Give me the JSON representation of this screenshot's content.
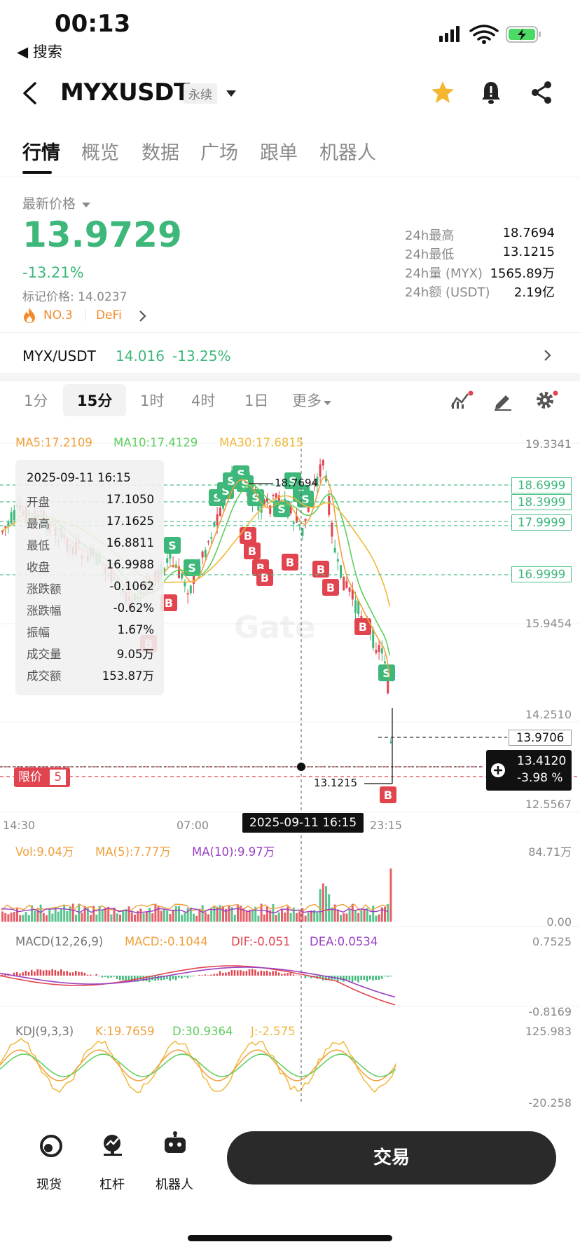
{
  "status_bar": {
    "time": "00:13",
    "back_label": "◀ 搜索"
  },
  "header": {
    "pair": "MYXUSDT",
    "contract_type": "永续"
  },
  "tabs": [
    "行情",
    "概览",
    "数据",
    "广场",
    "跟单",
    "机器人"
  ],
  "price_block": {
    "label": "最新价格",
    "last_price": "13.9729",
    "change_pct": "-13.21%",
    "mark_price_label": "标记价格: 14.0237",
    "rank": "NO.3",
    "sector": "DeFi"
  },
  "stats": [
    {
      "k": "24h最高",
      "v": "18.7694"
    },
    {
      "k": "24h最低",
      "v": "13.1215"
    },
    {
      "k": "24h量 (MYX)",
      "v": "1565.89万"
    },
    {
      "k": "24h额 (USDT)",
      "v": "2.19亿"
    }
  ],
  "spot_row": {
    "pair": "MYX/USDT",
    "price": "14.016",
    "change": "-13.25%"
  },
  "intervals": [
    "1分",
    "15分",
    "1时",
    "4时",
    "1日",
    "更多"
  ],
  "chart": {
    "ma_legend": {
      "ma5": "MA5:17.2109",
      "ma10": "MA10:17.4129",
      "ma30": "MA30:17.6815"
    },
    "y_axis": [
      "19.3341",
      "15.9454",
      "14.2510",
      "12.5567"
    ],
    "price_tags": [
      "18.6999",
      "18.3999",
      "17.9999",
      "16.9999"
    ],
    "current_price_tag": "13.9706",
    "crosshair_tag": {
      "price": "13.4120",
      "pct": "-3.98 %"
    },
    "high_marker": "18.7694",
    "low_marker": "13.1215",
    "limit_label": "限价",
    "limit_count": "5",
    "x_axis": [
      "14:30",
      "07:00",
      "23:15"
    ],
    "crosshair_time": "2025-09-11 16:15",
    "watermark": "Gate",
    "vol_legend": {
      "vol": "Vol:9.04万",
      "ma5": "MA(5):7.77万",
      "ma10": "MA(10):9.97万"
    },
    "vol_axis": [
      "84.71万",
      "0.00"
    ],
    "macd_legend": {
      "name": "MACD(12,26,9)",
      "macd": "MACD:-0.1044",
      "dif": "DIF:-0.051",
      "dea": "DEA:0.0534"
    },
    "macd_axis": [
      "0.7525",
      "-0.8169"
    ],
    "kdj_legend": {
      "name": "KDJ(9,3,3)",
      "k": "K:19.7659",
      "d": "D:30.9364",
      "j": "J:-2.575"
    },
    "kdj_axis": [
      "125.983",
      "-20.258"
    ],
    "popup": [
      {
        "k": "",
        "v": "2025-09-11 16:15"
      },
      {
        "k": "开盘",
        "v": "17.1050"
      },
      {
        "k": "最高",
        "v": "17.1625"
      },
      {
        "k": "最低",
        "v": "16.8811"
      },
      {
        "k": "收盘",
        "v": "16.9988"
      },
      {
        "k": "涨跌额",
        "v": "-0.1062"
      },
      {
        "k": "涨跌幅",
        "v": "-0.62%"
      },
      {
        "k": "振幅",
        "v": "1.67%"
      },
      {
        "k": "成交量",
        "v": "9.05万"
      },
      {
        "k": "成交额",
        "v": "153.87万"
      }
    ]
  },
  "bottom_nav": {
    "spot": "现货",
    "margin": "杠杆",
    "bot": "机器人",
    "trade": "交易"
  },
  "colors": {
    "up": "#3db87a",
    "down": "#e2444f",
    "ma5": "#f0a03c",
    "ma10": "#5ecf5e",
    "ma30": "#f0b93c",
    "macd_dif": "#e2444f",
    "macd_dea": "#9b3fc2",
    "kdj_j": "#f0b93c"
  }
}
